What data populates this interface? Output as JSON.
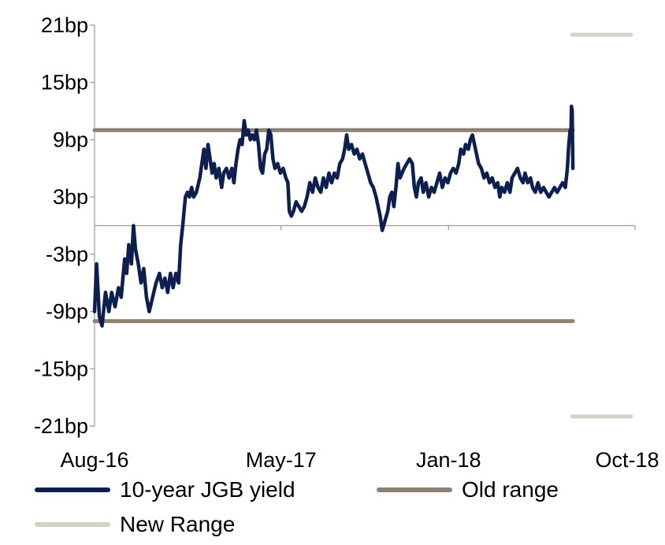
{
  "chart_data": {
    "type": "line",
    "title": "",
    "xlabel": "",
    "ylabel": "",
    "unit_suffix": "bp",
    "ylim": [
      -21,
      21
    ],
    "yticks": [
      21,
      15,
      9,
      3,
      -3,
      -9,
      -15,
      -21
    ],
    "ytick_labels": [
      "21bp",
      "15bp",
      "9bp",
      "3bp",
      "-3bp",
      "-9bp",
      "-15bp",
      "-21bp"
    ],
    "xlim": [
      "2016-08-01",
      "2018-10-01"
    ],
    "xticks": [
      "2016-08-01",
      "2017-05-01",
      "2018-01-01",
      "2018-10-01"
    ],
    "xtick_labels": [
      "Aug-16",
      "May-17",
      "Jan-18",
      "Oct-18"
    ],
    "grid": false,
    "legend_position": "bottom",
    "series": [
      {
        "name": "10-year JGB yield",
        "color": "#0d1f4f",
        "points": [
          [
            "2016-08-01",
            -9
          ],
          [
            "2016-08-04",
            -4
          ],
          [
            "2016-08-08",
            -9.5
          ],
          [
            "2016-08-12",
            -10.5
          ],
          [
            "2016-08-17",
            -7
          ],
          [
            "2016-08-22",
            -9
          ],
          [
            "2016-08-26",
            -7
          ],
          [
            "2016-08-31",
            -8.5
          ],
          [
            "2016-09-05",
            -6.5
          ],
          [
            "2016-09-09",
            -7.5
          ],
          [
            "2016-09-14",
            -3.5
          ],
          [
            "2016-09-17",
            -5
          ],
          [
            "2016-09-20",
            -2
          ],
          [
            "2016-09-24",
            -4
          ],
          [
            "2016-09-27",
            0
          ],
          [
            "2016-09-30",
            -2.5
          ],
          [
            "2016-10-04",
            -4
          ],
          [
            "2016-10-08",
            -6
          ],
          [
            "2016-10-12",
            -4.5
          ],
          [
            "2016-10-16",
            -7.5
          ],
          [
            "2016-10-20",
            -9
          ],
          [
            "2016-10-25",
            -7.5
          ],
          [
            "2016-10-30",
            -6
          ],
          [
            "2016-11-04",
            -5
          ],
          [
            "2016-11-08",
            -6.5
          ],
          [
            "2016-11-12",
            -5.5
          ],
          [
            "2016-11-16",
            -7
          ],
          [
            "2016-11-20",
            -5
          ],
          [
            "2016-11-24",
            -6.5
          ],
          [
            "2016-11-28",
            -5
          ],
          [
            "2016-12-02",
            -6
          ],
          [
            "2016-12-05",
            -2
          ],
          [
            "2016-12-08",
            0
          ],
          [
            "2016-12-12",
            3
          ],
          [
            "2016-12-15",
            3.5
          ],
          [
            "2016-12-18",
            3
          ],
          [
            "2016-12-21",
            4
          ],
          [
            "2016-12-24",
            3
          ],
          [
            "2016-12-28",
            3.5
          ],
          [
            "2017-01-02",
            5
          ],
          [
            "2017-01-05",
            6.5
          ],
          [
            "2017-01-08",
            8
          ],
          [
            "2017-01-11",
            6
          ],
          [
            "2017-01-14",
            8.5
          ],
          [
            "2017-01-17",
            7
          ],
          [
            "2017-01-20",
            5.5
          ],
          [
            "2017-01-23",
            6.5
          ],
          [
            "2017-01-26",
            5
          ],
          [
            "2017-01-30",
            6
          ],
          [
            "2017-02-03",
            4
          ],
          [
            "2017-02-06",
            5.5
          ],
          [
            "2017-02-10",
            6
          ],
          [
            "2017-02-14",
            5
          ],
          [
            "2017-02-18",
            6
          ],
          [
            "2017-02-21",
            4.5
          ],
          [
            "2017-02-24",
            6.5
          ],
          [
            "2017-02-27",
            8
          ],
          [
            "2017-03-02",
            9
          ],
          [
            "2017-03-05",
            8.5
          ],
          [
            "2017-03-08",
            11
          ],
          [
            "2017-03-11",
            9.5
          ],
          [
            "2017-03-14",
            10
          ],
          [
            "2017-03-17",
            9
          ],
          [
            "2017-03-20",
            9.5
          ],
          [
            "2017-03-23",
            9
          ],
          [
            "2017-03-26",
            10
          ],
          [
            "2017-03-29",
            8.5
          ],
          [
            "2017-04-01",
            6
          ],
          [
            "2017-04-04",
            5.5
          ],
          [
            "2017-04-07",
            7.5
          ],
          [
            "2017-04-10",
            8
          ],
          [
            "2017-04-13",
            10
          ],
          [
            "2017-04-16",
            9.5
          ],
          [
            "2017-04-19",
            7
          ],
          [
            "2017-04-22",
            6
          ],
          [
            "2017-04-26",
            6.5
          ],
          [
            "2017-04-30",
            5.5
          ],
          [
            "2017-05-04",
            6
          ],
          [
            "2017-05-08",
            5
          ],
          [
            "2017-05-11",
            4.5
          ],
          [
            "2017-05-13",
            1.5
          ],
          [
            "2017-05-16",
            1
          ],
          [
            "2017-05-19",
            1.5
          ],
          [
            "2017-05-23",
            2.5
          ],
          [
            "2017-05-27",
            2
          ],
          [
            "2017-05-31",
            1.5
          ],
          [
            "2017-06-04",
            2
          ],
          [
            "2017-06-08",
            3
          ],
          [
            "2017-06-12",
            4.5
          ],
          [
            "2017-06-16",
            3.5
          ],
          [
            "2017-06-20",
            5
          ],
          [
            "2017-06-24",
            4
          ],
          [
            "2017-06-28",
            3.5
          ],
          [
            "2017-07-02",
            5
          ],
          [
            "2017-07-06",
            4
          ],
          [
            "2017-07-10",
            5.5
          ],
          [
            "2017-07-14",
            4.5
          ],
          [
            "2017-07-18",
            5.5
          ],
          [
            "2017-07-22",
            5
          ],
          [
            "2017-07-26",
            6.5
          ],
          [
            "2017-07-30",
            7
          ],
          [
            "2017-08-02",
            8
          ],
          [
            "2017-08-05",
            9.5
          ],
          [
            "2017-08-08",
            8
          ],
          [
            "2017-08-12",
            8.5
          ],
          [
            "2017-08-16",
            7.5
          ],
          [
            "2017-08-20",
            8
          ],
          [
            "2017-08-24",
            7
          ],
          [
            "2017-08-28",
            7.5
          ],
          [
            "2017-09-01",
            6.5
          ],
          [
            "2017-09-05",
            5.5
          ],
          [
            "2017-09-09",
            4.5
          ],
          [
            "2017-09-13",
            4
          ],
          [
            "2017-09-17",
            3
          ],
          [
            "2017-09-20",
            2
          ],
          [
            "2017-09-23",
            1
          ],
          [
            "2017-09-26",
            -0.5
          ],
          [
            "2017-09-30",
            0.5
          ],
          [
            "2017-10-04",
            1.5
          ],
          [
            "2017-10-07",
            3
          ],
          [
            "2017-10-10",
            3.5
          ],
          [
            "2017-10-13",
            2
          ],
          [
            "2017-10-16",
            4
          ],
          [
            "2017-10-19",
            6.5
          ],
          [
            "2017-10-22",
            5
          ],
          [
            "2017-10-25",
            5.5
          ],
          [
            "2017-10-28",
            6
          ],
          [
            "2017-11-01",
            6.5
          ],
          [
            "2017-11-05",
            7
          ],
          [
            "2017-11-09",
            6.5
          ],
          [
            "2017-11-12",
            4
          ],
          [
            "2017-11-15",
            3
          ],
          [
            "2017-11-18",
            4.5
          ],
          [
            "2017-11-22",
            5
          ],
          [
            "2017-11-25",
            3.5
          ],
          [
            "2017-11-29",
            4.5
          ],
          [
            "2017-12-03",
            3
          ],
          [
            "2017-12-07",
            4
          ],
          [
            "2017-12-11",
            3.5
          ],
          [
            "2017-12-15",
            4.5
          ],
          [
            "2017-12-19",
            5.5
          ],
          [
            "2017-12-23",
            4
          ],
          [
            "2017-12-27",
            5
          ],
          [
            "2017-12-31",
            4.5
          ],
          [
            "2018-01-04",
            5.5
          ],
          [
            "2018-01-08",
            6
          ],
          [
            "2018-01-12",
            5.5
          ],
          [
            "2018-01-16",
            6.5
          ],
          [
            "2018-01-19",
            8
          ],
          [
            "2018-01-23",
            7.5
          ],
          [
            "2018-01-26",
            8.5
          ],
          [
            "2018-01-30",
            8
          ],
          [
            "2018-02-02",
            9
          ],
          [
            "2018-02-05",
            9.5
          ],
          [
            "2018-02-08",
            8.5
          ],
          [
            "2018-02-11",
            7.5
          ],
          [
            "2018-02-14",
            6.5
          ],
          [
            "2018-02-18",
            6
          ],
          [
            "2018-02-22",
            5
          ],
          [
            "2018-02-26",
            5.5
          ],
          [
            "2018-03-02",
            4.5
          ],
          [
            "2018-03-06",
            5
          ],
          [
            "2018-03-10",
            4
          ],
          [
            "2018-03-14",
            4.5
          ],
          [
            "2018-03-17",
            3
          ],
          [
            "2018-03-20",
            4
          ],
          [
            "2018-03-24",
            3.5
          ],
          [
            "2018-03-28",
            4.5
          ],
          [
            "2018-04-01",
            3.5
          ],
          [
            "2018-04-04",
            5
          ],
          [
            "2018-04-08",
            5.5
          ],
          [
            "2018-04-12",
            6
          ],
          [
            "2018-04-16",
            5
          ],
          [
            "2018-04-20",
            4.5
          ],
          [
            "2018-04-23",
            5.5
          ],
          [
            "2018-04-27",
            4.5
          ],
          [
            "2018-05-01",
            5
          ],
          [
            "2018-05-04",
            4
          ],
          [
            "2018-05-08",
            3.5
          ],
          [
            "2018-05-12",
            4.5
          ],
          [
            "2018-05-16",
            3.5
          ],
          [
            "2018-05-20",
            4
          ],
          [
            "2018-05-24",
            3.5
          ],
          [
            "2018-05-28",
            3
          ],
          [
            "2018-06-01",
            3.5
          ],
          [
            "2018-06-05",
            4
          ],
          [
            "2018-06-09",
            3.5
          ],
          [
            "2018-06-13",
            4
          ],
          [
            "2018-06-17",
            4.5
          ],
          [
            "2018-06-21",
            4
          ],
          [
            "2018-06-24",
            6
          ],
          [
            "2018-06-26",
            8.5
          ],
          [
            "2018-06-28",
            10
          ],
          [
            "2018-06-29",
            9
          ],
          [
            "2018-06-30",
            12.5
          ],
          [
            "2018-07-01",
            12
          ],
          [
            "2018-07-02",
            6
          ]
        ]
      },
      {
        "name": "Old range",
        "color": "#8c8172",
        "segments": [
          [
            [
              "2016-08-01",
              10
            ],
            [
              "2018-07-02",
              10
            ]
          ],
          [
            [
              "2016-08-01",
              -10
            ],
            [
              "2018-07-02",
              -10
            ]
          ]
        ]
      },
      {
        "name": "New Range",
        "color": "#d5cfc6",
        "segments": [
          [
            [
              "2018-07-01",
              20
            ],
            [
              "2018-09-25",
              20
            ]
          ],
          [
            [
              "2018-07-01",
              -20
            ],
            [
              "2018-09-25",
              -20
            ]
          ]
        ]
      }
    ]
  }
}
